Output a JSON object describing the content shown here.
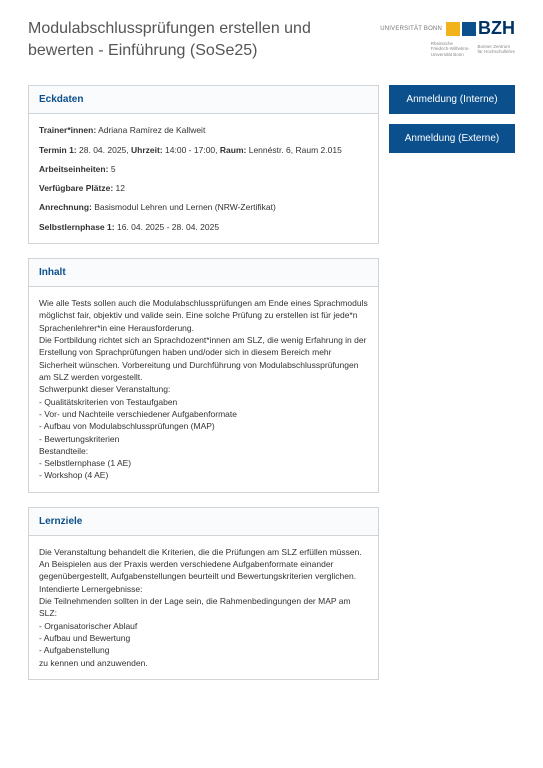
{
  "title": "Modulabschlussprüfungen erstellen und bewerten - Einführung (SoSe25)",
  "logo": {
    "university_text": "UNIVERSITÄT BONN",
    "bzh_text": "BZH",
    "subtitle_left": "Rheinische\nFriedrich-Wilhelms-\nUniversität Bonn",
    "subtitle_right": "Bonner Zentrum\nfür Hochschullehre"
  },
  "buttons": {
    "internal": "Anmeldung (Interne)",
    "external": "Anmeldung (Externe)"
  },
  "eckdaten": {
    "heading": "Eckdaten",
    "trainers_label": "Trainer*innen:",
    "trainers_value": "Adriana Ramírez de Kallweit",
    "termin_label": "Termin 1:",
    "termin_date": "28. 04. 2025,",
    "uhrzeit_label": "Uhrzeit:",
    "uhrzeit_value": "14:00 - 17:00,",
    "raum_label": "Raum:",
    "raum_value": "Lennéstr. 6, Raum 2.015",
    "ae_label": "Arbeitseinheiten:",
    "ae_value": "5",
    "plaetze_label": "Verfügbare Plätze:",
    "plaetze_value": "12",
    "anrechnung_label": "Anrechnung:",
    "anrechnung_value": "Basismodul Lehren und Lernen (NRW-Zertifikat)",
    "selbstlern_label": "Selbstlernphase 1:",
    "selbstlern_value": "16. 04. 2025 - 28. 04. 2025"
  },
  "inhalt": {
    "heading": "Inhalt",
    "text": "Wie alle Tests sollen auch die Modulabschlussprüfungen am Ende eines Sprachmoduls möglichst fair, objektiv und valide sein. Eine solche Prüfung zu erstellen ist für jede*n Sprachenlehrer*in eine Herausforderung.\nDie Fortbildung richtet sich an Sprachdozent*innen am SLZ, die wenig Erfahrung in der Erstellung von Sprachprüfungen haben und/oder sich in diesem Bereich mehr Sicherheit wünschen. Vorbereitung und Durchführung von Modulabschlussprüfungen am SLZ werden vorgestellt.\nSchwerpunkt dieser Veranstaltung:\n- Qualitätskriterien von Testaufgaben\n- Vor- und Nachteile verschiedener Aufgabenformate\n- Aufbau von Modulabschlussprüfungen (MAP)\n- Bewertungskriterien\nBestandteile:\n- Selbstlernphase (1 AE)\n- Workshop (4 AE)"
  },
  "lernziele": {
    "heading": "Lernziele",
    "text": "Die Veranstaltung behandelt die Kriterien, die die Prüfungen am SLZ erfüllen müssen. An Beispielen aus der Praxis werden verschiedene Aufgabenformate einander gegenübergestellt, Aufgabenstellungen beurteilt und Bewertungskriterien verglichen.\nIntendierte Lernergebnisse:\nDie Teilnehmenden sollten in der Lage sein, die Rahmenbedingungen der MAP am SLZ:\n- Organisatorischer Ablauf\n- Aufbau und Bewertung\n- Aufgabenstellung\nzu kennen und anzuwenden."
  },
  "colors": {
    "brand_blue": "#0b4f8c",
    "accent_yellow": "#f2b21a",
    "border_gray": "#cfd4d9",
    "text_gray": "#333333"
  }
}
